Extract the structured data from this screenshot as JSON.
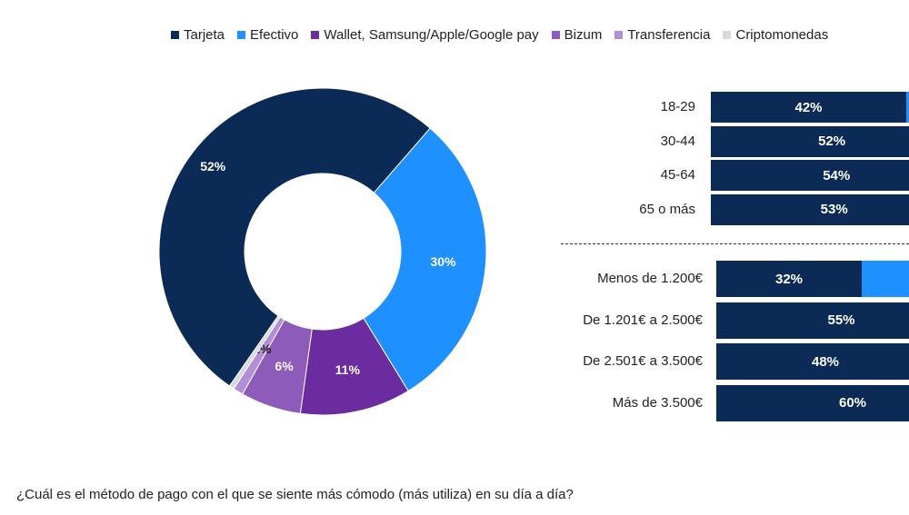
{
  "chart_data": [
    {
      "type": "pie",
      "variant": "donut",
      "legend_position": "top",
      "series": [
        {
          "name": "Tarjeta",
          "value": 52,
          "label": "52%",
          "color": "#0b2a55"
        },
        {
          "name": "Efectivo",
          "value": 30,
          "label": "30%",
          "color": "#1e90ff"
        },
        {
          "name": "Wallet, Samsung/Apple/Google pay",
          "value": 11,
          "label": "11%",
          "color": "#6a2c9e"
        },
        {
          "name": "Bizum",
          "value": 6,
          "label": "6%",
          "color": "#8d5bb9"
        },
        {
          "name": "Transferencia",
          "value": 1,
          "label": "1%",
          "color": "#b18fd8"
        },
        {
          "name": "Criptomonedas",
          "value": 0.5,
          "label": "",
          "color": "#d8d8e0"
        }
      ]
    },
    {
      "type": "bar",
      "orientation": "horizontal",
      "stacked": true,
      "groups": [
        {
          "rows": [
            {
              "label": "18-29",
              "tarjeta": 42,
              "tarjeta_label": "42%"
            },
            {
              "label": "30-44",
              "tarjeta": 52,
              "tarjeta_label": "52%"
            },
            {
              "label": "45-64",
              "tarjeta": 54,
              "tarjeta_label": "54%"
            },
            {
              "label": "65 o más",
              "tarjeta": 53,
              "tarjeta_label": "53%"
            }
          ]
        },
        {
          "rows": [
            {
              "label": "Menos de 1.200€",
              "tarjeta": 32,
              "tarjeta_label": "32%"
            },
            {
              "label": "De 1.201€ a 2.500€",
              "tarjeta": 55,
              "tarjeta_label": "55%"
            },
            {
              "label": "De 2.501€ a 3.500€",
              "tarjeta": 48,
              "tarjeta_label": "48%"
            },
            {
              "label": "Más de 3.500€",
              "tarjeta": 60,
              "tarjeta_label": "60%"
            }
          ]
        }
      ]
    }
  ],
  "question": "¿Cuál es el método de pago con el que se siente más cómodo (más utiliza) en su día a día?"
}
